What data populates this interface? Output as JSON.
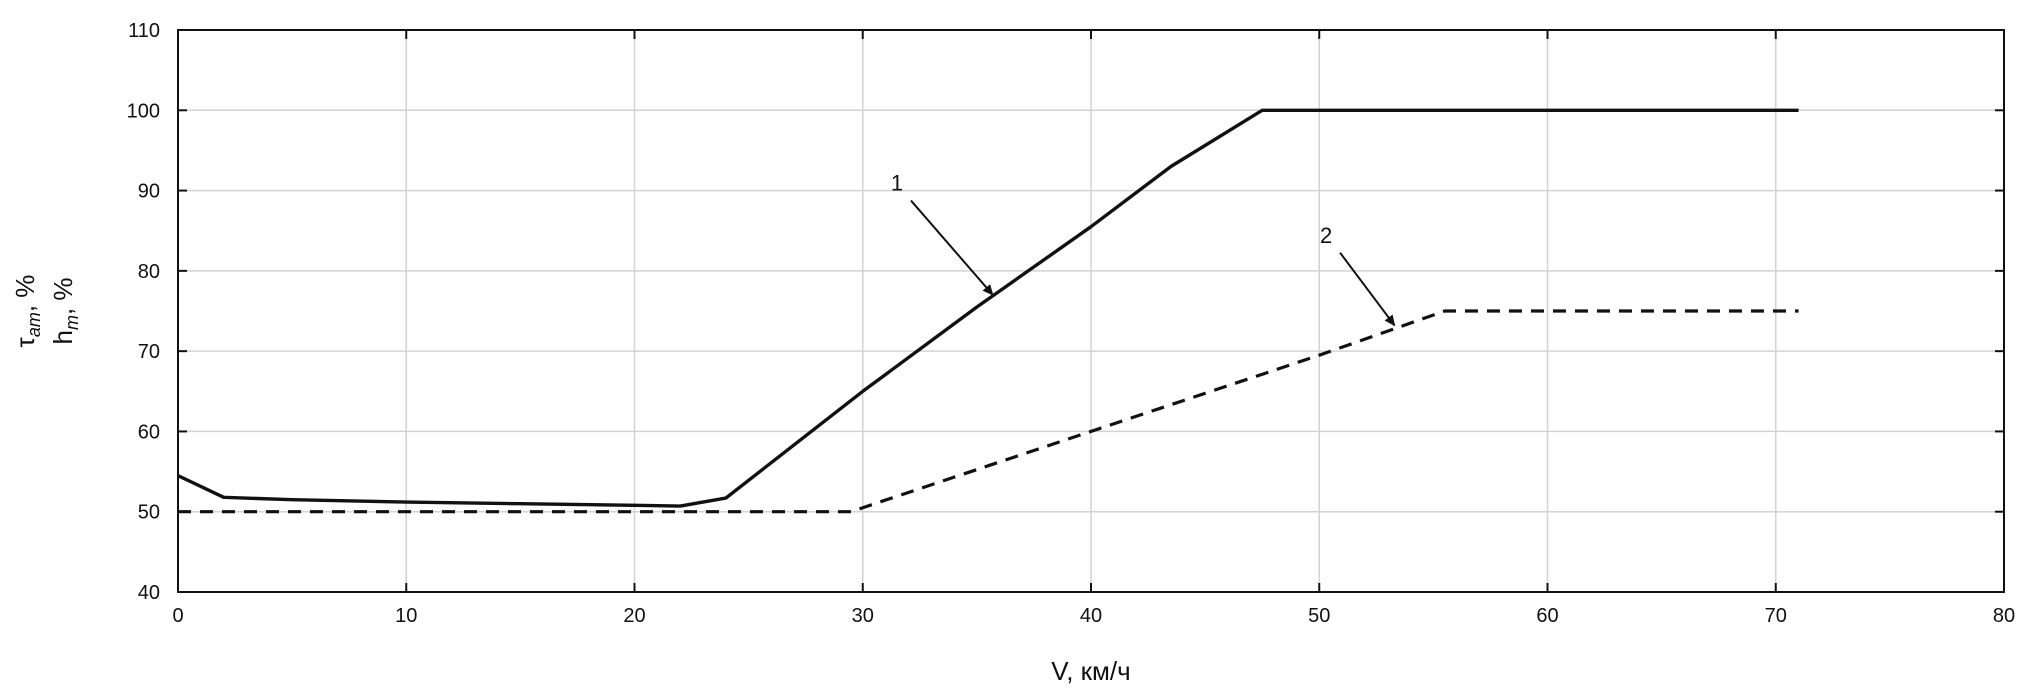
{
  "chart_data": {
    "type": "line",
    "xlabel": "V, км/ч",
    "ylabel_lines": [
      {
        "base": "τ",
        "sub": "am",
        "suffix": ", %"
      },
      {
        "base": "h",
        "sub": "m",
        "suffix": ", %"
      }
    ],
    "xlim": [
      0,
      80
    ],
    "ylim": [
      40,
      110
    ],
    "xticks": [
      0,
      10,
      20,
      30,
      40,
      50,
      60,
      70,
      80
    ],
    "yticks": [
      40,
      50,
      60,
      70,
      80,
      90,
      100,
      110
    ],
    "grid": true,
    "series": [
      {
        "style": "solid",
        "points": [
          [
            0,
            54.5
          ],
          [
            2,
            51.8
          ],
          [
            5,
            51.5
          ],
          [
            10,
            51.2
          ],
          [
            15,
            51.0
          ],
          [
            20,
            50.8
          ],
          [
            22,
            50.7
          ],
          [
            24,
            51.7
          ],
          [
            30,
            65
          ],
          [
            35,
            75.5
          ],
          [
            40,
            85.5
          ],
          [
            43.5,
            93
          ],
          [
            47.5,
            100
          ],
          [
            71,
            100
          ]
        ]
      },
      {
        "style": "dashed",
        "points": [
          [
            0,
            50
          ],
          [
            29.5,
            50
          ],
          [
            30,
            50.5
          ],
          [
            40,
            60
          ],
          [
            50,
            69.5
          ],
          [
            55.5,
            75
          ],
          [
            71,
            75
          ]
        ]
      }
    ],
    "annotations": [
      {
        "text": "1",
        "label_at": [
          31.5,
          90
        ],
        "arrow_to": [
          35.7,
          77
        ]
      },
      {
        "text": "2",
        "label_at": [
          50.3,
          83.5
        ],
        "arrow_to": [
          53.3,
          73.2
        ]
      }
    ]
  }
}
